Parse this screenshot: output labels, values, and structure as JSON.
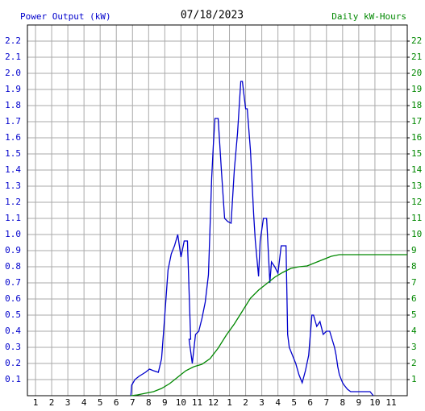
{
  "chart_data": {
    "type": "line",
    "title": "07/18/2023",
    "y_label": "Power Output (kW)",
    "y2_label": "Daily kW-Hours",
    "xlim": [
      0.5,
      24
    ],
    "xticks": [
      1,
      2,
      3,
      4,
      5,
      6,
      7,
      8,
      9,
      10,
      11,
      12,
      {
        "value": 13,
        "label": "1"
      },
      {
        "value": 14,
        "label": "2"
      },
      {
        "value": 15,
        "label": "3"
      },
      {
        "value": 16,
        "label": "4"
      },
      {
        "value": 17,
        "label": "5"
      },
      {
        "value": 18,
        "label": "6"
      },
      {
        "value": 19,
        "label": "7"
      },
      {
        "value": 20,
        "label": "8"
      },
      {
        "value": 21,
        "label": "9"
      },
      {
        "value": 22,
        "label": "10"
      },
      {
        "value": 23,
        "label": "11"
      }
    ],
    "ylim": [
      0,
      2.3
    ],
    "yticks": [
      0.1,
      0.2,
      0.3,
      0.4,
      0.5,
      0.6,
      0.7,
      0.8,
      0.9,
      {
        "value": 1,
        "label": "1.0"
      },
      1.1,
      1.2,
      1.3,
      1.4,
      1.5,
      1.6,
      1.7,
      1.8,
      1.9,
      {
        "value": 2,
        "label": "2.0"
      },
      2.1,
      2.2
    ],
    "y2lim": [
      0,
      23
    ],
    "y2ticks": [
      1,
      2,
      3,
      4,
      5,
      6,
      7,
      8,
      9,
      10,
      11,
      12,
      13,
      14,
      15,
      16,
      17,
      18,
      19,
      20,
      21,
      22
    ],
    "grid": true,
    "series": [
      {
        "name": "Power Output (kW)",
        "color": "#0000cc",
        "axis": "y",
        "x": [
          6.9,
          6.95,
          7.15,
          7.4,
          7.8,
          8.05,
          8.3,
          8.6,
          8.8,
          9.0,
          9.2,
          9.4,
          9.6,
          9.8,
          10.0,
          10.2,
          10.4,
          10.6,
          10.5,
          10.7,
          10.9,
          11.1,
          11.3,
          11.5,
          11.7,
          11.9,
          12.0,
          12.1,
          12.3,
          12.5,
          12.6,
          12.7,
          12.9,
          13.1,
          13.3,
          13.5,
          13.7,
          13.8,
          14.0,
          14.1,
          14.3,
          14.5,
          14.6,
          14.8,
          14.9,
          15.1,
          15.3,
          15.5,
          15.6,
          15.8,
          16.0,
          16.2,
          16.5,
          16.6,
          16.7,
          16.9,
          17.1,
          17.3,
          17.5,
          17.7,
          17.9,
          18.1,
          18.2,
          18.4,
          18.6,
          18.8,
          19.0,
          19.2,
          19.5,
          19.6,
          19.7,
          19.8,
          20.0,
          20.1,
          20.3,
          20.5,
          20.7,
          21.7,
          21.9
        ],
        "values": [
          0,
          0.065,
          0.1,
          0.12,
          0.145,
          0.165,
          0.155,
          0.145,
          0.23,
          0.5,
          0.78,
          0.88,
          0.93,
          1.0,
          0.86,
          0.96,
          0.96,
          0.35,
          0.35,
          0.2,
          0.38,
          0.4,
          0.48,
          0.58,
          0.75,
          1.35,
          1.55,
          1.72,
          1.72,
          1.4,
          1.25,
          1.1,
          1.08,
          1.07,
          1.4,
          1.63,
          1.95,
          1.95,
          1.78,
          1.78,
          1.52,
          1.12,
          0.96,
          0.74,
          0.96,
          1.1,
          1.1,
          0.7,
          0.83,
          0.8,
          0.76,
          0.93,
          0.93,
          0.38,
          0.3,
          0.25,
          0.2,
          0.13,
          0.08,
          0.155,
          0.25,
          0.5,
          0.5,
          0.43,
          0.46,
          0.38,
          0.4,
          0.4,
          0.3,
          0.25,
          0.18,
          0.13,
          0.08,
          0.065,
          0.04,
          0.025,
          0.025,
          0.025,
          0
        ]
      },
      {
        "name": "Daily kW-Hours",
        "color": "#008800",
        "axis": "y2",
        "x": [
          6.9,
          7.3,
          7.8,
          8.3,
          8.8,
          9.3,
          9.8,
          10.3,
          10.8,
          11.3,
          11.8,
          12.3,
          12.8,
          13.3,
          13.8,
          14.3,
          14.8,
          15.3,
          15.8,
          16.3,
          16.8,
          17.3,
          17.8,
          18.3,
          18.8,
          19.3,
          19.8,
          20.3,
          24
        ],
        "values": [
          0,
          0.05,
          0.15,
          0.25,
          0.45,
          0.75,
          1.15,
          1.55,
          1.8,
          1.95,
          2.3,
          2.95,
          3.75,
          4.45,
          5.25,
          6.05,
          6.55,
          6.95,
          7.35,
          7.65,
          7.9,
          8.0,
          8.05,
          8.25,
          8.45,
          8.65,
          8.75,
          8.75,
          8.75
        ]
      }
    ]
  }
}
